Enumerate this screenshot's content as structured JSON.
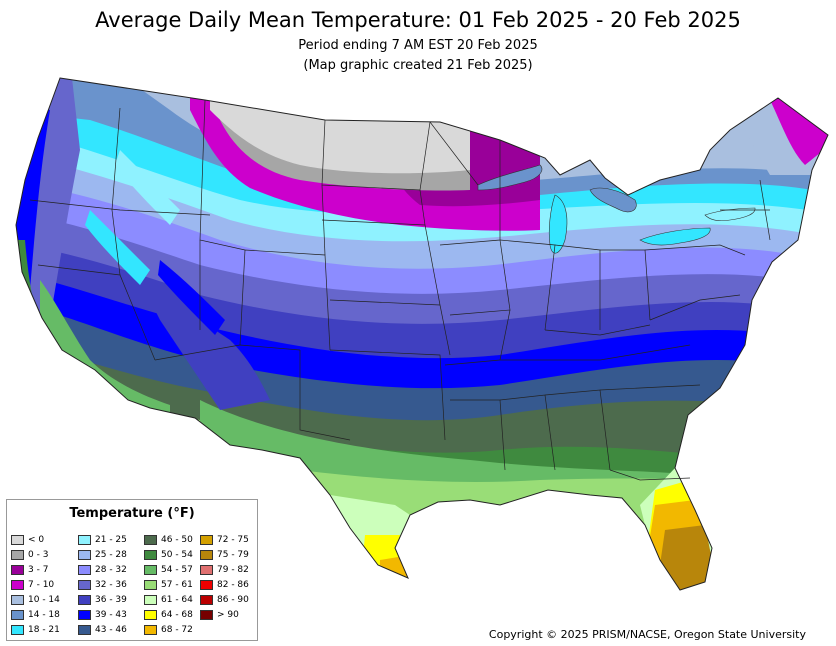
{
  "title": "Average Daily Mean Temperature: 01 Feb 2025 - 20 Feb 2025",
  "subtitle_period": "Period ending 7 AM EST 20 Feb 2025",
  "subtitle_created": "(Map graphic created 21 Feb 2025)",
  "legend": {
    "title": "Temperature (°F)",
    "items": [
      {
        "label": "< 0",
        "color": "#d9d9d9"
      },
      {
        "label": "0 - 3",
        "color": "#a6a6a6"
      },
      {
        "label": "3 - 7",
        "color": "#990099"
      },
      {
        "label": "7 - 10",
        "color": "#cc00cc"
      },
      {
        "label": "10 - 14",
        "color": "#a9bfdf"
      },
      {
        "label": "14 - 18",
        "color": "#6a93cc"
      },
      {
        "label": "18 - 21",
        "color": "#33e6ff"
      },
      {
        "label": "21 - 25",
        "color": "#8ff2ff"
      },
      {
        "label": "25 - 28",
        "color": "#9cb8f0"
      },
      {
        "label": "28 - 32",
        "color": "#8c8cff"
      },
      {
        "label": "32 - 36",
        "color": "#6666cc"
      },
      {
        "label": "36 - 39",
        "color": "#4040c0"
      },
      {
        "label": "39 - 43",
        "color": "#0000ff"
      },
      {
        "label": "43 - 46",
        "color": "#36598f"
      },
      {
        "label": "46 - 50",
        "color": "#4d6b4d"
      },
      {
        "label": "50 - 54",
        "color": "#3f8a3f"
      },
      {
        "label": "54 - 57",
        "color": "#66bb66"
      },
      {
        "label": "57 - 61",
        "color": "#99dd77"
      },
      {
        "label": "61 - 64",
        "color": "#ccffbb"
      },
      {
        "label": "64 - 68",
        "color": "#ffff00"
      },
      {
        "label": "68 - 72",
        "color": "#f2b800"
      },
      {
        "label": "72 - 75",
        "color": "#d4a000"
      },
      {
        "label": "75 - 79",
        "color": "#b8860b"
      },
      {
        "label": "79 - 82",
        "color": "#e07070"
      },
      {
        "label": "82 - 86",
        "color": "#ee0000"
      },
      {
        "label": "86 - 90",
        "color": "#bb0000"
      },
      {
        "label": "> 90",
        "color": "#770000"
      }
    ]
  },
  "copyright": "Copyright © 2025 PRISM/NACSE, Oregon State University"
}
